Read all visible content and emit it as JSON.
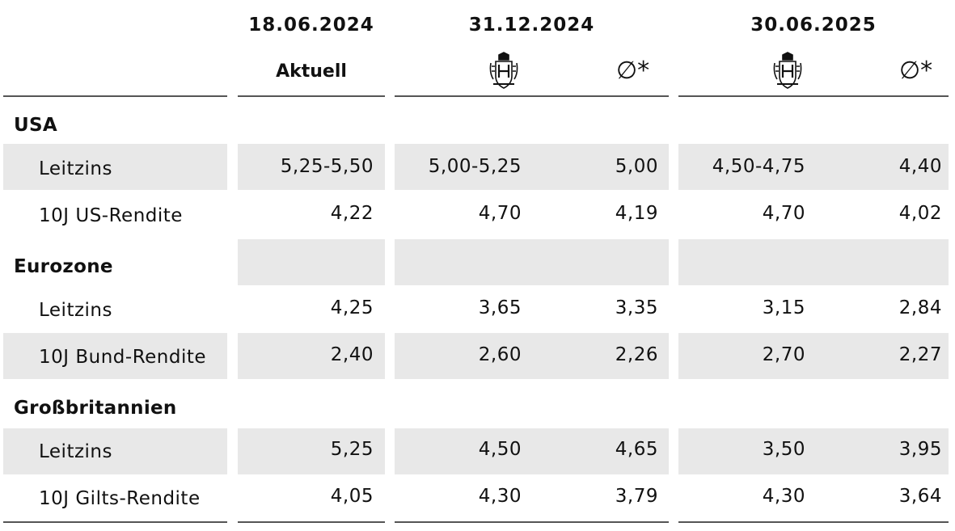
{
  "header": {
    "dates": [
      "18.06.2024",
      "31.12.2024",
      "30.06.2025"
    ],
    "current_label": "Aktuell",
    "avg_label": "∅*",
    "crest_icon": "bank-crest-icon"
  },
  "groups": [
    {
      "name": "USA",
      "rows": [
        {
          "label": "Leitzins",
          "values": [
            "5,25-5,50",
            "5,00-5,25",
            "5,00",
            "4,50-4,75",
            "4,40"
          ]
        },
        {
          "label": "10J US-Rendite",
          "values": [
            "4,22",
            "4,70",
            "4,19",
            "4,70",
            "4,02"
          ]
        }
      ]
    },
    {
      "name": "Eurozone",
      "rows": [
        {
          "label": "Leitzins",
          "values": [
            "4,25",
            "3,65",
            "3,35",
            "3,15",
            "2,84"
          ]
        },
        {
          "label": "10J Bund-Rendite",
          "values": [
            "2,40",
            "2,60",
            "2,26",
            "2,70",
            "2,27"
          ]
        }
      ]
    },
    {
      "name": "Großbritannien",
      "rows": [
        {
          "label": "Leitzins",
          "values": [
            "5,25",
            "4,50",
            "4,65",
            "3,50",
            "3,95"
          ]
        },
        {
          "label": "10J Gilts-Rendite",
          "values": [
            "4,05",
            "4,30",
            "3,79",
            "4,30",
            "3,64"
          ]
        }
      ]
    }
  ],
  "colors": {
    "shade": "#e8e8e8",
    "rule": "#555555"
  }
}
